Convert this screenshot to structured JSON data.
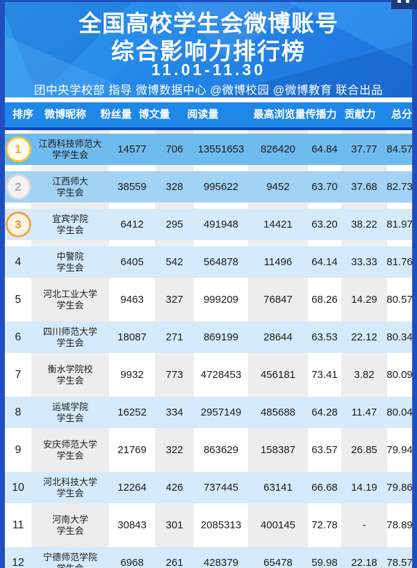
{
  "page": {
    "title_line1": "全国高校学生会微博账号",
    "title_line2": "综合影响力排行榜",
    "date_range": "11.01-11.30",
    "credits": "团中央学校部 指导  微博数据中心 @微博校园 @微博教育 联合出品"
  },
  "table": {
    "headers": [
      "排序",
      "微博昵称",
      "粉丝量",
      "博文量",
      "阅读量",
      "最高浏览量",
      "传播力",
      "贡献力",
      "总分"
    ],
    "rows": [
      {
        "rank": "1",
        "medal": "gold",
        "name": "江西科技师范大\n学学生会",
        "fans": "14577",
        "posts": "706",
        "reads": "13551653",
        "max_views": "826420",
        "spread": "64.84",
        "contribution": "37.77",
        "total": "84.57"
      },
      {
        "rank": "2",
        "medal": "silver",
        "name": "江西师大\n学生会",
        "fans": "38559",
        "posts": "328",
        "reads": "995622",
        "max_views": "9452",
        "spread": "63.70",
        "contribution": "37.68",
        "total": "82.73"
      },
      {
        "rank": "3",
        "medal": "bronze",
        "name": "宜宾学院\n学生会",
        "fans": "6412",
        "posts": "295",
        "reads": "491948",
        "max_views": "14421",
        "spread": "63.20",
        "contribution": "38.22",
        "total": "81.97"
      },
      {
        "rank": "4",
        "medal": null,
        "name": "中警院\n学生会",
        "fans": "6405",
        "posts": "542",
        "reads": "564878",
        "max_views": "11496",
        "spread": "64.14",
        "contribution": "33.33",
        "total": "81.76"
      },
      {
        "rank": "5",
        "medal": null,
        "name": "河北工业大学\n学生会",
        "fans": "9463",
        "posts": "327",
        "reads": "999209",
        "max_views": "76847",
        "spread": "68.26",
        "contribution": "14.29",
        "total": "80.57"
      },
      {
        "rank": "6",
        "medal": null,
        "name": "四川师范大学\n学生会",
        "fans": "18087",
        "posts": "271",
        "reads": "869199",
        "max_views": "28644",
        "spread": "63.53",
        "contribution": "22.12",
        "total": "80.34"
      },
      {
        "rank": "7",
        "medal": null,
        "name": "衡水学院校\n学生会",
        "fans": "9932",
        "posts": "773",
        "reads": "4728453",
        "max_views": "456181",
        "spread": "73.41",
        "contribution": "3.82",
        "total": "80.09"
      },
      {
        "rank": "8",
        "medal": null,
        "name": "运城学院\n学生会",
        "fans": "16252",
        "posts": "334",
        "reads": "2957149",
        "max_views": "485688",
        "spread": "64.28",
        "contribution": "11.47",
        "total": "80.04"
      },
      {
        "rank": "9",
        "medal": null,
        "name": "安庆师范大学\n学生会",
        "fans": "21769",
        "posts": "322",
        "reads": "863629",
        "max_views": "158387",
        "spread": "63.57",
        "contribution": "26.85",
        "total": "79.94"
      },
      {
        "rank": "10",
        "medal": null,
        "name": "河北科技大学\n学生会",
        "fans": "12264",
        "posts": "426",
        "reads": "737445",
        "max_views": "63141",
        "spread": "66.68",
        "contribution": "14.19",
        "total": "79.86"
      },
      {
        "rank": "11",
        "medal": null,
        "name": "河南大学\n学生会",
        "fans": "30843",
        "posts": "301",
        "reads": "2085313",
        "max_views": "400145",
        "spread": "72.78",
        "contribution": "-",
        "total": "78.89"
      },
      {
        "rank": "12",
        "medal": null,
        "name": "宁德师范学院\n学生会",
        "fans": "6968",
        "posts": "261",
        "reads": "428379",
        "max_views": "65478",
        "spread": "59.98",
        "contribution": "22.18",
        "total": "78.57"
      }
    ]
  },
  "chart_data": {
    "type": "table",
    "title": "全国高校学生会微博账号综合影响力排行榜 11.01-11.30",
    "columns": [
      "排序",
      "微博昵称",
      "粉丝量",
      "博文量",
      "阅读量",
      "最高浏览量",
      "传播力",
      "贡献力",
      "总分"
    ],
    "rows": [
      [
        1,
        "江西科技师范大学学生会",
        14577,
        706,
        13551653,
        826420,
        64.84,
        37.77,
        84.57
      ],
      [
        2,
        "江西师大学生会",
        38559,
        328,
        995622,
        9452,
        63.7,
        37.68,
        82.73
      ],
      [
        3,
        "宜宾学院学生会",
        6412,
        295,
        491948,
        14421,
        63.2,
        38.22,
        81.97
      ],
      [
        4,
        "中警院学生会",
        6405,
        542,
        564878,
        11496,
        64.14,
        33.33,
        81.76
      ],
      [
        5,
        "河北工业大学学生会",
        9463,
        327,
        999209,
        76847,
        68.26,
        14.29,
        80.57
      ],
      [
        6,
        "四川师范大学学生会",
        18087,
        271,
        869199,
        28644,
        63.53,
        22.12,
        80.34
      ],
      [
        7,
        "衡水学院校学生会",
        9932,
        773,
        4728453,
        456181,
        73.41,
        3.82,
        80.09
      ],
      [
        8,
        "运城学院学生会",
        16252,
        334,
        2957149,
        485688,
        64.28,
        11.47,
        80.04
      ],
      [
        9,
        "安庆师范大学学生会",
        21769,
        322,
        863629,
        158387,
        63.57,
        26.85,
        79.94
      ],
      [
        10,
        "河北科技大学学生会",
        12264,
        426,
        737445,
        63141,
        66.68,
        14.19,
        79.86
      ],
      [
        11,
        "河南大学学生会",
        30843,
        301,
        2085313,
        400145,
        72.78,
        null,
        78.89
      ],
      [
        12,
        "宁德师范学院学生会",
        6968,
        261,
        428379,
        65478,
        59.98,
        22.18,
        78.57
      ]
    ]
  },
  "colors": {
    "banner_top": "#2F9BF0",
    "banner_bottom": "#1B6FDD",
    "header_bg": "#1E87E8",
    "header_underline": "#0D47B8",
    "side_border": "#1F4FBE",
    "corner_widget": "#1A3C80",
    "row1_bg": "#70BBEE",
    "row2_bg": "#A2D2F4",
    "row_light_bg": "#D5EAFA",
    "stripe_gray": "#EDEDED",
    "text_dark": "#1C1C1C",
    "gold": "#F6C538",
    "gold_num": "#F5A62A",
    "silver": "#D9D9D9",
    "silver_num": "#ABABAB",
    "bronze": "#F2A43D",
    "bronze_num": "#EE9530"
  }
}
